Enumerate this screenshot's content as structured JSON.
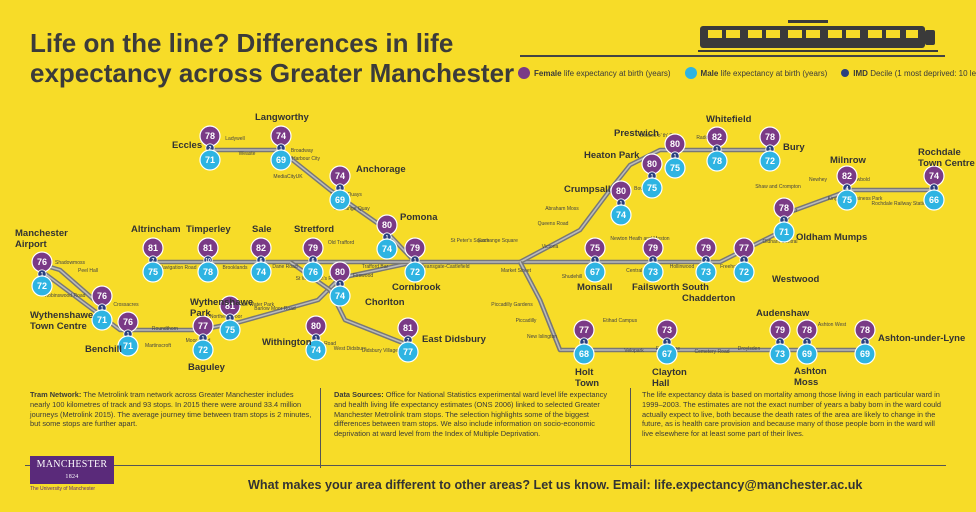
{
  "title": "Life on the line? Differences in life expectancy across Greater Manchester",
  "legend": {
    "female_bold": "Female",
    "female_rest": "life expectancy at birth (years)",
    "male_bold": "Male",
    "male_rest": "life expectancy at birth (years)",
    "imd_bold": "IMD",
    "imd_rest": "Decile (1 most deprived: 10 least deprived)"
  },
  "colors": {
    "background": "#f7dc28",
    "female": "#7a3a86",
    "male": "#2eb4e2",
    "imd": "#2a3f7e",
    "line": "#8a8a8a"
  },
  "stations": [
    {
      "name": "Manchester Airport",
      "female": 76,
      "male": 72,
      "imd": 1
    },
    {
      "name": "Wythenshawe Town Centre",
      "female": 76,
      "male": 71,
      "imd": 1
    },
    {
      "name": "Benchill",
      "female": 76,
      "male": 71,
      "imd": 1
    },
    {
      "name": "Baguley",
      "female": 77,
      "male": 72,
      "imd": 1
    },
    {
      "name": "Wythenshawe Park",
      "female": 81,
      "male": 75,
      "imd": 1
    },
    {
      "name": "Withington",
      "female": 80,
      "male": 74,
      "imd": 1
    },
    {
      "name": "East Didsbury",
      "female": 81,
      "male": 77,
      "imd": 7
    },
    {
      "name": "Altrincham",
      "female": 81,
      "male": 75,
      "imd": 7
    },
    {
      "name": "Timperley",
      "female": 81,
      "male": 78,
      "imd": 10
    },
    {
      "name": "Sale",
      "female": 82,
      "male": 74,
      "imd": 6
    },
    {
      "name": "Stretford",
      "female": 79,
      "male": 76,
      "imd": 6
    },
    {
      "name": "Chorlton",
      "female": 80,
      "male": 74,
      "imd": 1
    },
    {
      "name": "Cornbrook",
      "female": 79,
      "male": 72,
      "imd": 1
    },
    {
      "name": "Pomona",
      "female": 80,
      "male": 74,
      "imd": 1
    },
    {
      "name": "Anchorage",
      "female": 74,
      "male": 69,
      "imd": 1
    },
    {
      "name": "Langworthy",
      "female": 74,
      "male": 69,
      "imd": 1
    },
    {
      "name": "Eccles",
      "female": 78,
      "male": 71,
      "imd": 2
    },
    {
      "name": "Crumpsall",
      "female": 80,
      "male": 74,
      "imd": 1
    },
    {
      "name": "Heaton Park",
      "female": 80,
      "male": 75,
      "imd": 1
    },
    {
      "name": "Prestwich",
      "female": 80,
      "male": 75,
      "imd": 1
    },
    {
      "name": "Whitefield",
      "female": 82,
      "male": 78,
      "imd": 1
    },
    {
      "name": "Bury",
      "female": 78,
      "male": 72,
      "imd": 1
    },
    {
      "name": "Monsall",
      "female": 75,
      "male": 67,
      "imd": 1
    },
    {
      "name": "Failsworth",
      "female": 79,
      "male": 73,
      "imd": 1
    },
    {
      "name": "South Chadderton",
      "female": 79,
      "male": 73,
      "imd": 2
    },
    {
      "name": "Westwood",
      "female": 77,
      "male": 72,
      "imd": 1
    },
    {
      "name": "Oldham Mumps",
      "female": 78,
      "male": 71,
      "imd": 1
    },
    {
      "name": "Milnrow",
      "female": 82,
      "male": 75,
      "imd": 4
    },
    {
      "name": "Rochdale Town Centre",
      "female": 74,
      "male": 66,
      "imd": 1
    },
    {
      "name": "Holt Town",
      "female": 77,
      "male": 68,
      "imd": 1
    },
    {
      "name": "Clayton Hall",
      "female": 73,
      "male": 67,
      "imd": 1
    },
    {
      "name": "Audenshaw",
      "female": 79,
      "male": 73,
      "imd": 1
    },
    {
      "name": "Ashton Moss",
      "female": 78,
      "male": 69,
      "imd": 1
    },
    {
      "name": "Ashton-under-Lyne",
      "female": 78,
      "male": 69,
      "imd": 1
    }
  ],
  "minor_stops": [
    "Shadowmoss",
    "Peel Hall",
    "Robinswood Road",
    "Crossacres",
    "Roundthorn",
    "Martinscroft",
    "Moor Road",
    "Northern Moor",
    "Sale Water Park",
    "Barlow Moor Road",
    "Burton Road",
    "West Didsbury",
    "Didsbury Village",
    "Navigation Road",
    "Brooklands",
    "Dane Road",
    "Old Trafford",
    "Trafford Bar",
    "Firswood",
    "St Werburgh's Road",
    "Exchange Quay",
    "Salford Quays",
    "MediaCityUK",
    "Harbour City",
    "Broadway",
    "Weaste",
    "Ladywell",
    "Deansgate-Castlefield",
    "St Peter's Square",
    "Exchange Square",
    "Market Street",
    "Piccadilly Gardens",
    "Piccadilly",
    "New Islington",
    "Victoria",
    "Shudehill",
    "Queens Road",
    "Abraham Moss",
    "Bowker Vale",
    "Besses o' th' Barn",
    "Radcliffe",
    "Newton Heath and Moston",
    "Central Park",
    "Hollinwood",
    "Freehold",
    "Oldham Central",
    "Derker",
    "Shaw and Crompton",
    "Newhey",
    "Newbold",
    "Kingsway Business Park",
    "Rochdale Railway Station",
    "Etihad Campus",
    "Velopark",
    "Edge Lane",
    "Cemetery Road",
    "Droylsden",
    "Ashton West"
  ],
  "panels": {
    "tram_bold": "Tram Network:",
    "tram_text": "The Metrolink tram network across Greater Manchester includes nearly 100 kilometres of track and 93 stops. In 2015 there were around 33.4 million journeys (Metrolink 2015). The average journey time between tram stops is 2 minutes, but some stops are further apart.",
    "data_bold": "Data Sources:",
    "data_text": "Office for National Statistics experimental ward level life expectancy and health living life expectancy estimates (ONS 2006) linked to selected Greater Manchester Metrolink tram stops. The selection highlights some of the biggest differences between tram stops. We also include information on socio-economic deprivation at ward level from the Index of Multiple Deprivation.",
    "life_text": "The life expectancy data is based on mortality among those living in each particular ward in 1999–2003. The estimates are not the exact number of years a baby born in the ward could actually expect to live, both because the death rates of the area are likely to change in the future, as is health care provision and because many of those people born in the ward will live elsewhere for at least some part of their lives."
  },
  "logo": {
    "name": "MANCHESTER",
    "year": "1824",
    "sub": "The University of Manchester"
  },
  "footer": "What makes your area different to other areas? Let us know. Email: life.expectancy@manchester.ac.uk"
}
